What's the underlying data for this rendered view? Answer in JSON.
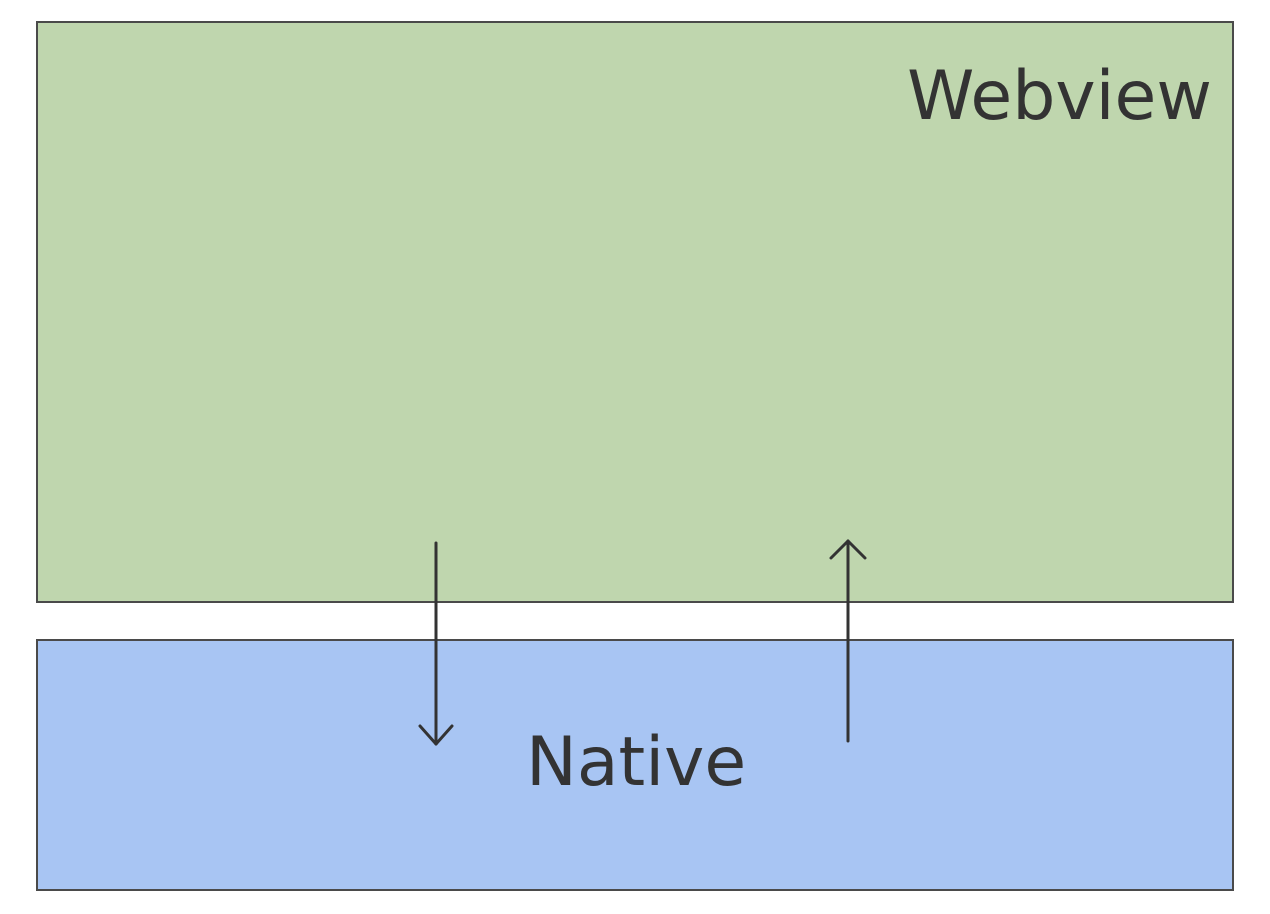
{
  "webview": {
    "label": "Webview",
    "color": "#bfd6ae"
  },
  "native": {
    "label": "Native",
    "color": "#a8c5f3"
  },
  "border_color": "#4a4a4a",
  "arrows": [
    {
      "from": "webview",
      "to": "native",
      "direction": "down"
    },
    {
      "from": "native",
      "to": "webview",
      "direction": "up"
    }
  ]
}
